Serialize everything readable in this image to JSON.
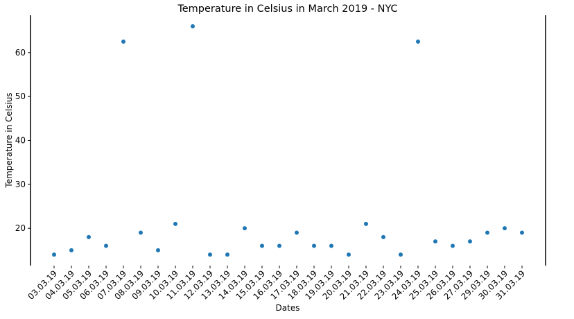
{
  "chart_data": {
    "type": "scatter",
    "title": "Temperature in Celsius in March 2019 - NYC",
    "xlabel": "Dates",
    "ylabel": "Temperature in Celsius",
    "ylim": [
      11.5,
      68.5
    ],
    "yticks": [
      20,
      30,
      40,
      50,
      60
    ],
    "grid": false,
    "colors": {
      "point": "#1f77b4"
    },
    "categories": [
      "03.03.19",
      "04.03.19",
      "05.03.19",
      "06.03.19",
      "07.03.19",
      "08.03.19",
      "09.03.19",
      "10.03.19",
      "11.03.19",
      "12.03.19",
      "13.03.19",
      "14.03.19",
      "15.03.19",
      "16.03.19",
      "17.03.19",
      "18.03.19",
      "19.03.19",
      "20.03.19",
      "21.03.19",
      "22.03.19",
      "23.03.19",
      "24.03.19",
      "25.03.19",
      "26.03.19",
      "27.03.19",
      "29.03.19",
      "30.03.19",
      "31.03.19"
    ],
    "values": [
      14,
      15,
      18,
      16,
      62.5,
      19,
      15,
      21,
      66,
      14,
      14,
      20,
      16,
      16,
      19,
      16,
      16,
      14,
      21,
      18,
      14,
      62.5,
      17,
      16,
      17,
      19,
      20,
      19
    ]
  }
}
